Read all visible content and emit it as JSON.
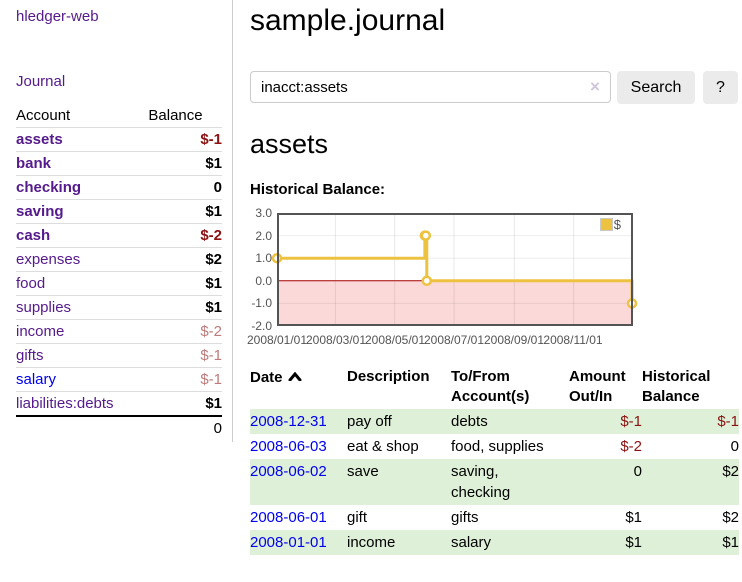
{
  "app": {
    "brand": "hledger-web"
  },
  "colors": {
    "link_visited_purple": "#551a8b",
    "link_blue": "#0000ee",
    "negative_red": "#8b1212",
    "dim_negative_red": "#bd7b7b",
    "row_stripe_green": "#dff0d8",
    "series_yellow": "#edc240",
    "button_gray": "#ebebeb"
  },
  "sidebar": {
    "nav": {
      "journal_label": "Journal"
    },
    "accounts_table": {
      "headers": {
        "account": "Account",
        "balance": "Balance"
      },
      "rows": [
        {
          "name": "assets",
          "balance": "$-1"
        },
        {
          "name": "bank",
          "balance": "$1"
        },
        {
          "name": "checking",
          "balance": "0"
        },
        {
          "name": "saving",
          "balance": "$1"
        },
        {
          "name": "cash",
          "balance": "$-2"
        },
        {
          "name": "expenses",
          "balance": "$2"
        },
        {
          "name": "food",
          "balance": "$1"
        },
        {
          "name": "supplies",
          "balance": "$1"
        },
        {
          "name": "income",
          "balance": "$-2"
        },
        {
          "name": "gifts",
          "balance": "$-1"
        },
        {
          "name": "salary",
          "balance": "$-1"
        },
        {
          "name": "liabilities:debts",
          "balance": "$1"
        }
      ],
      "total": "0"
    }
  },
  "main": {
    "title": "sample.journal",
    "search": {
      "value": "inacct:assets",
      "clear_icon": "×",
      "button_label": "Search",
      "help_label": "?"
    },
    "account_heading": "assets",
    "chart_label": "Historical Balance:",
    "transactions": {
      "headers": {
        "date": "Date",
        "description": "Description",
        "tofrom": "To/From Account(s)",
        "amount": "Amount Out/In",
        "historical": "Historical Balance"
      },
      "rows": [
        {
          "date": "2008-12-31",
          "description": "pay off",
          "tofrom": "debts",
          "amount": "$-1",
          "historical": "$-1"
        },
        {
          "date": "2008-06-03",
          "description": "eat & shop",
          "tofrom": "food, supplies",
          "amount": "$-2",
          "historical": "0"
        },
        {
          "date": "2008-06-02",
          "description": "save",
          "tofrom": "saving, checking",
          "amount": "0",
          "historical": "$2"
        },
        {
          "date": "2008-06-01",
          "description": "gift",
          "tofrom": "gifts",
          "amount": "$1",
          "historical": "$2"
        },
        {
          "date": "2008-01-01",
          "description": "income",
          "tofrom": "salary",
          "amount": "$1",
          "historical": "$1"
        }
      ]
    }
  },
  "chart_data": {
    "type": "line",
    "style": "step",
    "title": "Historical Balance:",
    "series": [
      {
        "name": "$",
        "color": "#edc240",
        "points": [
          [
            "2008-01-01",
            1
          ],
          [
            "2008-06-01",
            2
          ],
          [
            "2008-06-02",
            2
          ],
          [
            "2008-06-03",
            0
          ],
          [
            "2008-12-31",
            -1
          ]
        ]
      }
    ],
    "x_range": [
      "2008-01-01",
      "2009-01-01"
    ],
    "x_ticks": [
      "2008/01/01",
      "2008/03/01",
      "2008/05/01",
      "2008/07/01",
      "2008/09/01",
      "2008/11/01"
    ],
    "y_ticks": [
      3.0,
      2.0,
      1.0,
      0.0,
      -1.0,
      -2.0
    ],
    "y_tick_labels": [
      "3.0",
      "2.0",
      "1.0",
      "0.0",
      "-1.0",
      "-2.0"
    ],
    "ylim": [
      -2,
      3
    ],
    "grid": true,
    "negative_region_fill": "#fcd9d9",
    "zero_line_color": "#a40000",
    "legend": {
      "position": "top-right",
      "label": "$"
    }
  }
}
